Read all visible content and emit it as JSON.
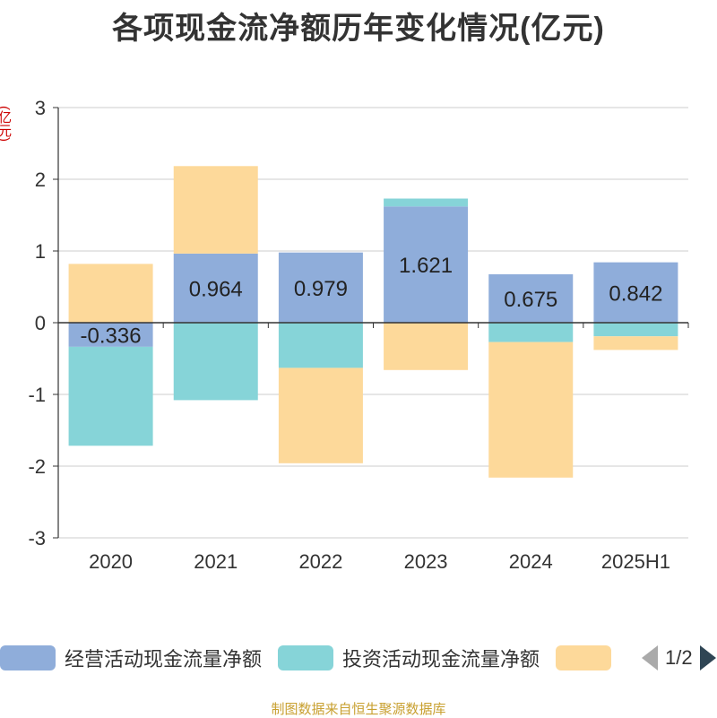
{
  "chart_data": {
    "type": "bar",
    "stacked": true,
    "title": "各项现金流净额历年变化情况(亿元)",
    "ylabel": "(亿元)",
    "categories": [
      "2020",
      "2021",
      "2022",
      "2023",
      "2024",
      "2025H1"
    ],
    "ylim": [
      -3,
      3
    ],
    "yticks": [
      3,
      2,
      1,
      0,
      -1,
      -2,
      -3
    ],
    "grid": true,
    "legend_position": "bottom",
    "series": [
      {
        "name": "经营活动现金流量净额",
        "color": "#8fadda",
        "values": [
          -0.336,
          0.964,
          0.979,
          1.621,
          0.675,
          0.842
        ],
        "labels": [
          "-0.336",
          "0.964",
          "0.979",
          "1.621",
          "0.675",
          "0.842"
        ]
      },
      {
        "name": "投资活动现金流量净额",
        "color": "#86d4d8",
        "values": [
          -1.38,
          -1.08,
          -0.63,
          0.11,
          -0.27,
          -0.19
        ]
      },
      {
        "name": "",
        "color": "#fdd99a",
        "values": [
          0.82,
          1.22,
          -1.33,
          -0.66,
          -1.89,
          -0.19
        ]
      }
    ]
  },
  "legend": {
    "items": [
      {
        "label": "经营活动现金流量净额",
        "color": "#8fadda"
      },
      {
        "label": "投资活动现金流量净额",
        "color": "#86d4d8"
      },
      {
        "label": "",
        "color": "#fdd99a"
      }
    ],
    "page": "1/2"
  },
  "source": "制图数据来自恒生聚源数据库"
}
